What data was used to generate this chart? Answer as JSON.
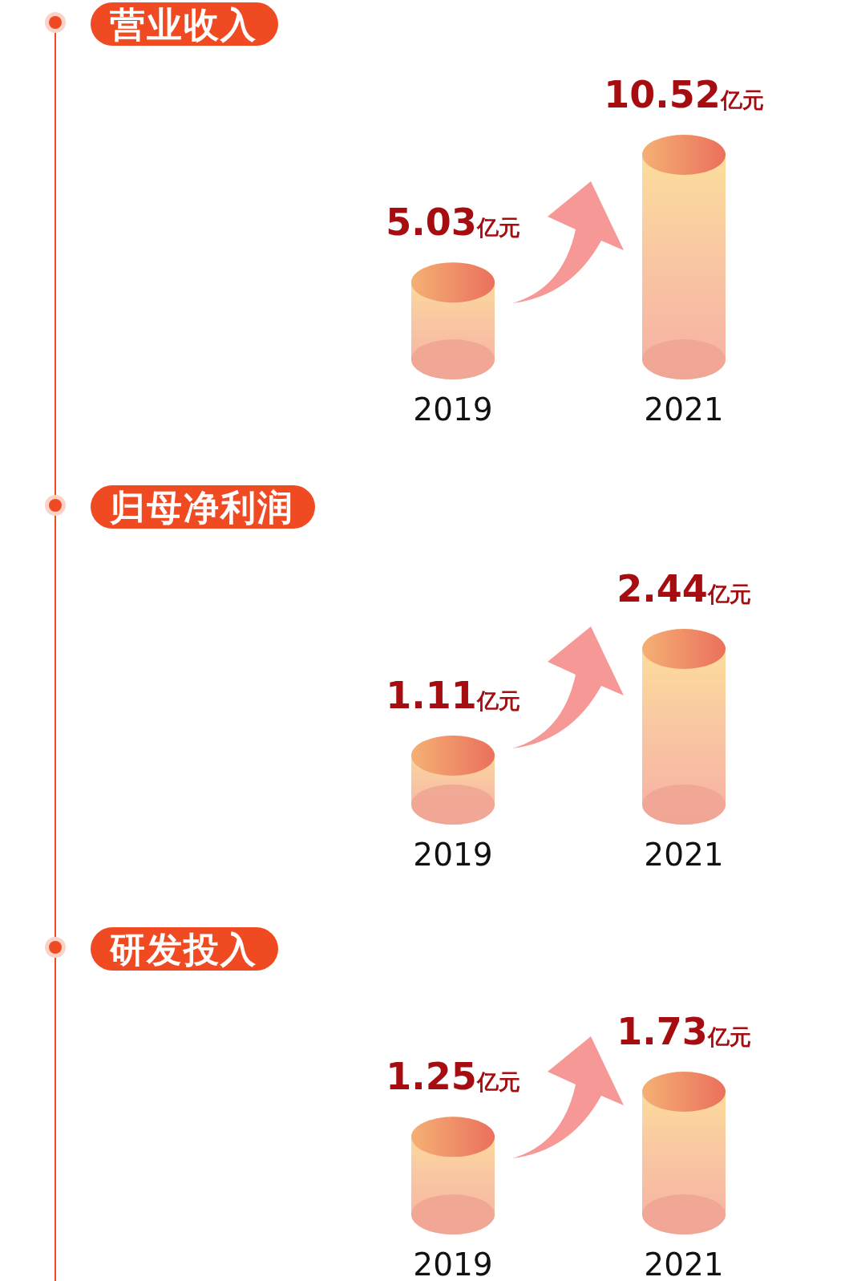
{
  "chart_data": [
    {
      "type": "bar",
      "title": "营业收入",
      "categories": [
        "2019",
        "2021"
      ],
      "values": [
        5.03,
        10.52
      ],
      "value_labels": [
        "5.03亿元",
        "10.52亿元"
      ],
      "color": "#f9c7a2"
    },
    {
      "type": "bar",
      "title": "归母净利润",
      "categories": [
        "2019",
        "2021"
      ],
      "values": [
        1.11,
        2.44
      ],
      "value_labels": [
        "1.11亿元",
        "2.44亿元"
      ],
      "color": "#f9c7a2"
    },
    {
      "type": "bar",
      "title": "研发投入",
      "categories": [
        "2019",
        "2021"
      ],
      "values": [
        1.25,
        1.73
      ],
      "value_labels": [
        "1.25亿元",
        "1.73亿元"
      ],
      "color": "#f9c7a2"
    }
  ]
}
